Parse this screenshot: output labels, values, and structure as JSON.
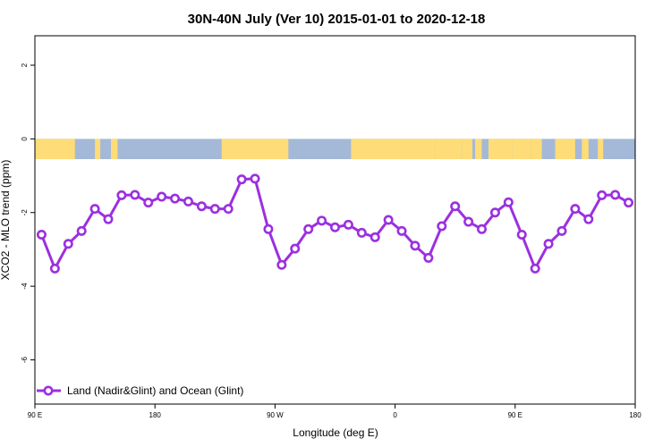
{
  "chart_data": {
    "type": "line",
    "title": "30N-40N July (Ver 10)   2015-01-01 to 2020-12-18",
    "xlabel": "Longitude (deg E)",
    "ylabel": "XCO2 - MLO trend (ppm)",
    "xlim": [
      90,
      540
    ],
    "ylim": [
      -7.2,
      2.8
    ],
    "x_ticks": [
      {
        "value": 90,
        "label": "90 E"
      },
      {
        "value": 180,
        "label": "180"
      },
      {
        "value": 270,
        "label": "90 W"
      },
      {
        "value": 360,
        "label": "0"
      },
      {
        "value": 450,
        "label": "90 E"
      },
      {
        "value": 540,
        "label": "180"
      }
    ],
    "y_ticks": [
      {
        "value": 2,
        "label": "2"
      },
      {
        "value": 0,
        "label": "0"
      },
      {
        "value": -2,
        "label": "-2"
      },
      {
        "value": -4,
        "label": "-4"
      },
      {
        "value": -6,
        "label": "-6"
      }
    ],
    "grid": false,
    "legend_position": "bottom-left",
    "land_ocean_band": {
      "y_range": [
        -0.55,
        0
      ],
      "ocean_color": "#a4b8d8",
      "land_color": "#fedc78",
      "land_longitudes": [
        [
          90,
          120
        ],
        [
          135,
          139
        ],
        [
          147,
          148
        ],
        [
          148,
          149
        ],
        [
          149,
          152
        ],
        [
          230,
          262
        ],
        [
          262,
          280
        ],
        [
          245,
          265
        ],
        [
          327,
          345
        ],
        [
          328,
          390
        ],
        [
          390,
          410
        ],
        [
          360,
          365
        ],
        [
          370,
          375
        ],
        [
          395,
          400
        ],
        [
          410,
          418
        ],
        [
          420,
          425
        ],
        [
          430,
          440
        ],
        [
          438,
          448
        ],
        [
          448,
          462
        ],
        [
          462,
          470
        ],
        [
          480,
          495
        ],
        [
          500,
          505
        ],
        [
          512,
          516
        ]
      ]
    },
    "series": [
      {
        "name": "Land (Nadir&Glint) and Ocean (Glint)",
        "color": "#9b30e0",
        "x": [
          95,
          105,
          115,
          125,
          135,
          145,
          155,
          165,
          175,
          185,
          195,
          205,
          215,
          225,
          235,
          245,
          255,
          265,
          275,
          285,
          295,
          305,
          315,
          325,
          335,
          345,
          355,
          365,
          375,
          385,
          395,
          405,
          415,
          425,
          435,
          445,
          455,
          465,
          475,
          485,
          495,
          505,
          515,
          525,
          535
        ],
        "y": [
          -2.6,
          -3.52,
          -2.85,
          -2.5,
          -1.9,
          -2.18,
          -1.53,
          -1.52,
          -1.73,
          -1.57,
          -1.62,
          -1.7,
          -1.83,
          -1.9,
          -1.9,
          -1.1,
          -1.08,
          -2.45,
          -3.42,
          -2.98,
          -2.45,
          -2.22,
          -2.4,
          -2.33,
          -2.55,
          -2.67,
          -2.2,
          -2.5,
          -2.9,
          -3.23,
          -2.37,
          -1.83,
          -2.25,
          -2.45,
          -2.0,
          -1.72,
          -2.6,
          -3.52,
          -2.85,
          -2.5,
          -1.9,
          -2.18,
          -1.53,
          -1.52,
          -1.73
        ]
      }
    ]
  }
}
